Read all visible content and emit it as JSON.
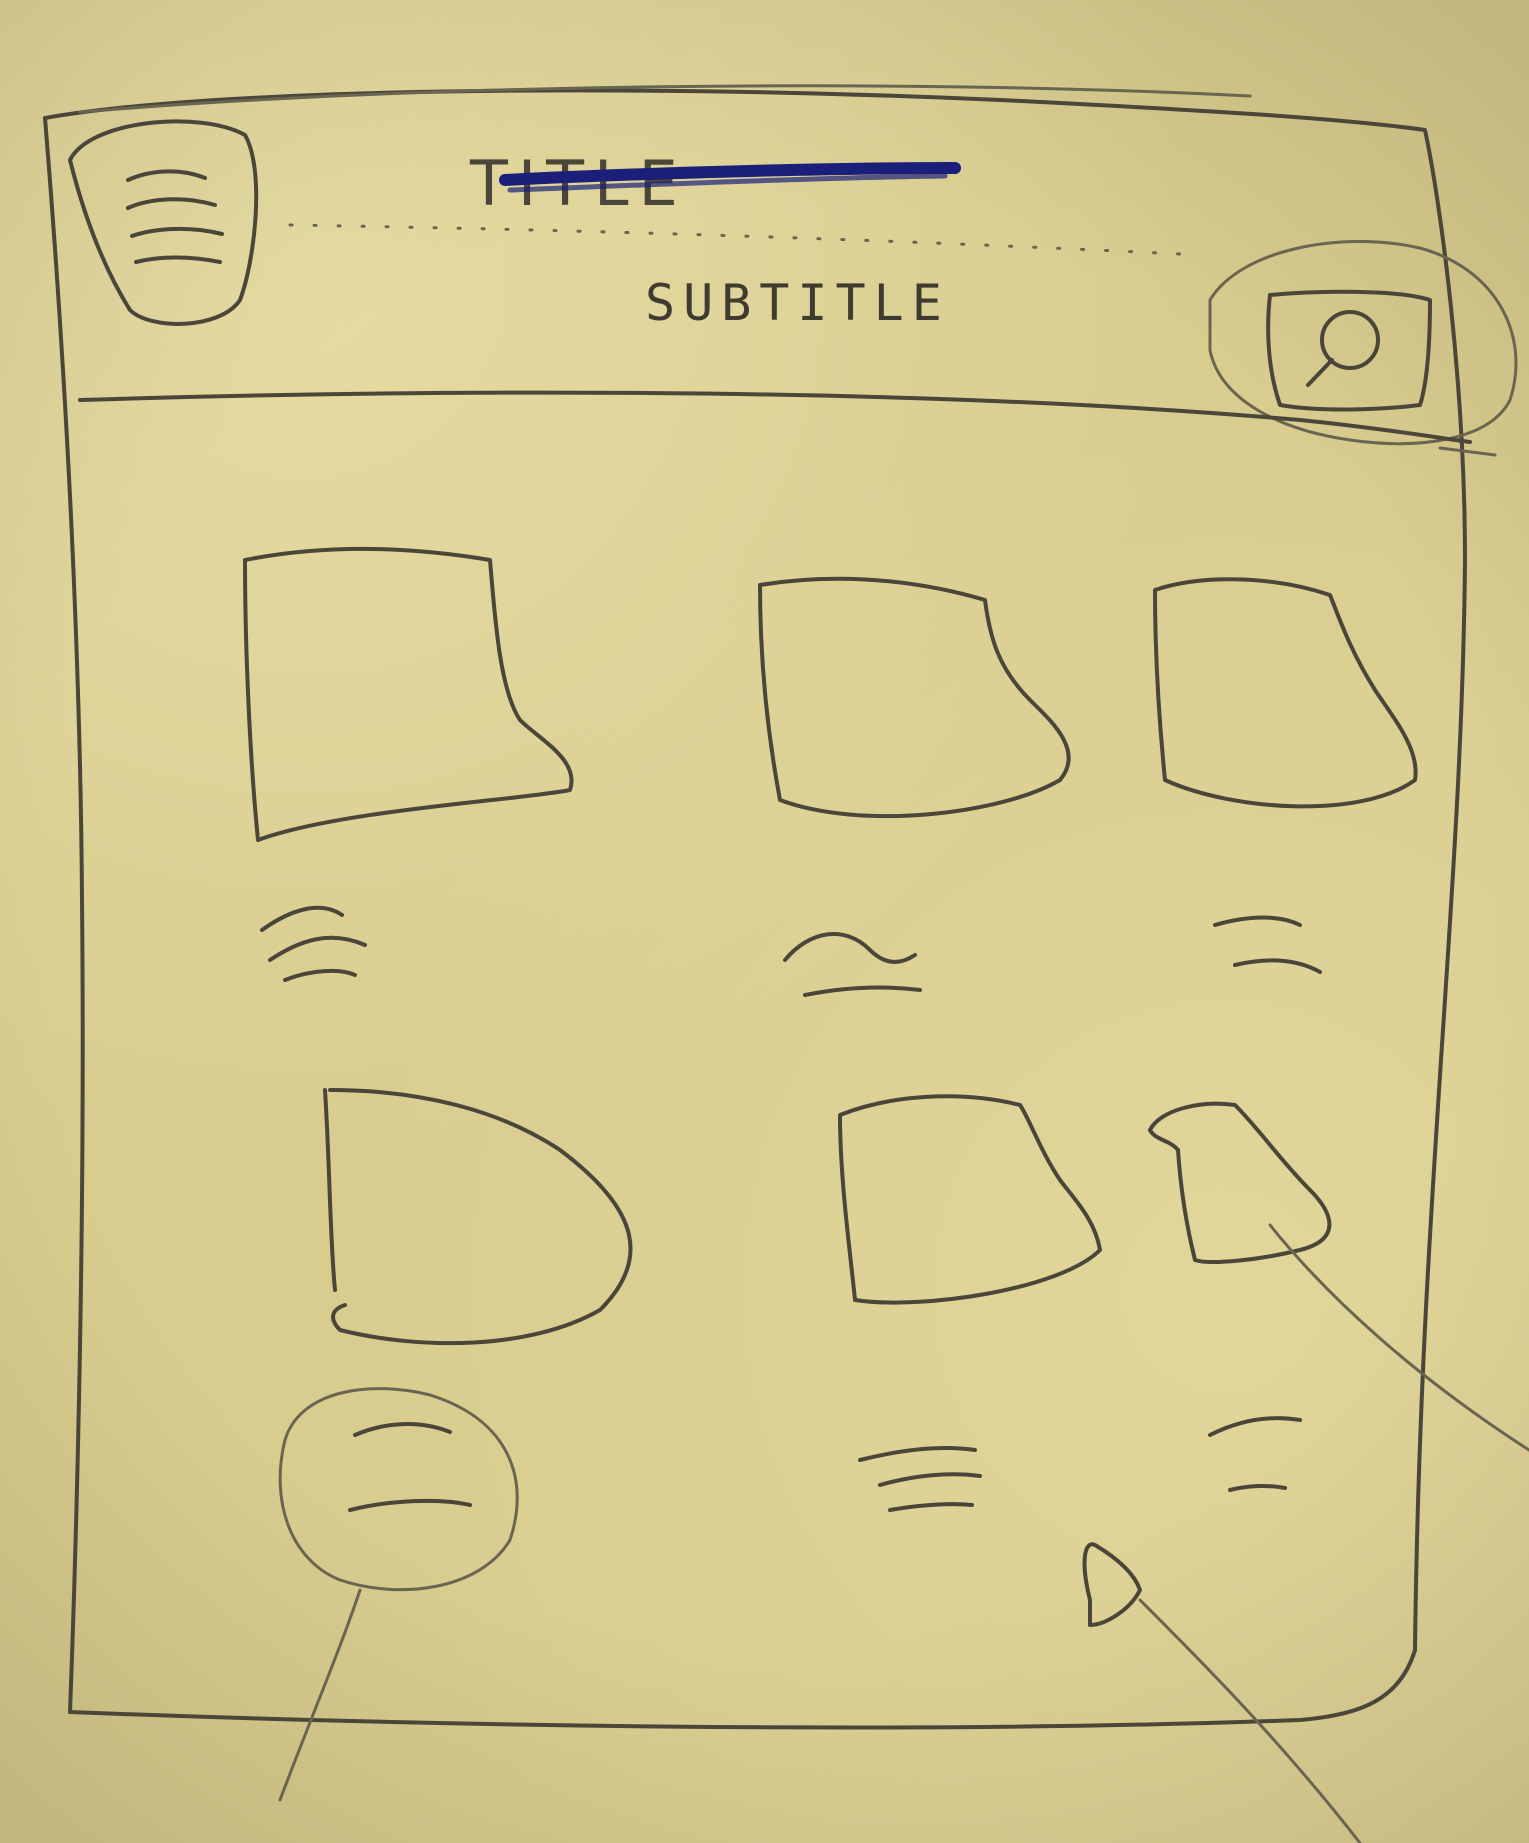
{
  "header": {
    "title": "TITLE",
    "subtitle": "SUBTITLE",
    "title_strike_color": "#1b1f7a",
    "menu_icon": "hamburger-menu-icon",
    "search_icon": "search-icon"
  },
  "grid": {
    "rows": 2,
    "columns": 3,
    "items": [
      {
        "id": "item-1",
        "label_lines": 2
      },
      {
        "id": "item-2",
        "label_lines": 2
      },
      {
        "id": "item-3",
        "label_lines": 2
      },
      {
        "id": "item-4",
        "label_lines": 2
      },
      {
        "id": "item-5",
        "label_lines": 2
      },
      {
        "id": "item-6",
        "label_lines": 2
      }
    ]
  },
  "annotations": {
    "search_circled": true,
    "label_circled": true,
    "cursor_icon": "pointer-cursor-icon"
  },
  "colors": {
    "paper": "#d8cc8f",
    "pencil": "#4a463a",
    "ink": "#1b1f7a"
  }
}
